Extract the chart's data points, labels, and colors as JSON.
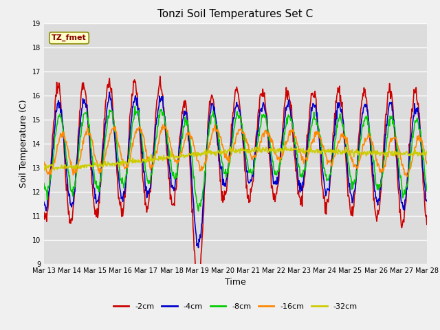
{
  "title": "Tonzi Soil Temperatures Set C",
  "xlabel": "Time",
  "ylabel": "Soil Temperature (C)",
  "ylim": [
    9.0,
    19.0
  ],
  "yticks": [
    9.0,
    10.0,
    11.0,
    12.0,
    13.0,
    14.0,
    15.0,
    16.0,
    17.0,
    18.0,
    19.0
  ],
  "xtick_labels": [
    "Mar 13",
    "Mar 14",
    "Mar 15",
    "Mar 16",
    "Mar 17",
    "Mar 18",
    "Mar 19",
    "Mar 20",
    "Mar 21",
    "Mar 22",
    "Mar 23",
    "Mar 24",
    "Mar 25",
    "Mar 26",
    "Mar 27",
    "Mar 28"
  ],
  "series": {
    "-2cm": {
      "color": "#cc0000",
      "lw": 1.2
    },
    "-4cm": {
      "color": "#0000cc",
      "lw": 1.2
    },
    "-8cm": {
      "color": "#00cc00",
      "lw": 1.2
    },
    "-16cm": {
      "color": "#ff8800",
      "lw": 1.2
    },
    "-32cm": {
      "color": "#cccc00",
      "lw": 1.2
    }
  },
  "legend_order": [
    "-2cm",
    "-4cm",
    "-8cm",
    "-16cm",
    "-32cm"
  ],
  "annotation": "TZ_fmet",
  "bg_color": "#dcdcdc",
  "grid_color": "#ffffff",
  "title_fontsize": 11,
  "tick_fontsize": 7,
  "label_fontsize": 9,
  "legend_fontsize": 8
}
